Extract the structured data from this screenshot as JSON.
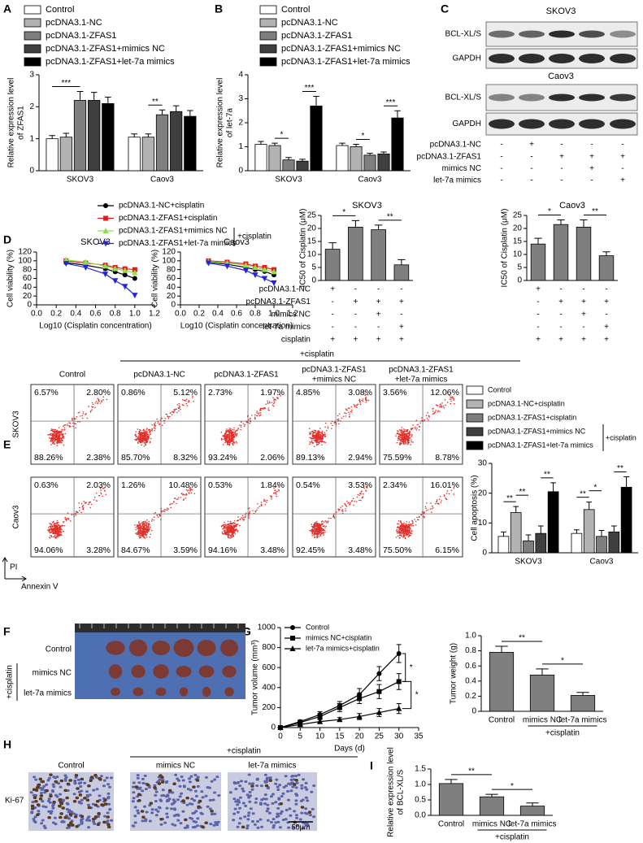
{
  "panel_labels": [
    "A",
    "B",
    "C",
    "D",
    "E",
    "F",
    "G",
    "H",
    "I"
  ],
  "blots": {
    "cell_lines": [
      {
        "name": "SKOV3",
        "bands": [
          "BCL-XL/S",
          "GAPDH"
        ]
      },
      {
        "name": "Caov3",
        "bands": [
          "BCL-XL/S",
          "GAPDH"
        ]
      }
    ],
    "treatments": [
      {
        "label": "pcDNA3.1-NC",
        "marks": [
          "-",
          "+",
          "-",
          "-",
          "-"
        ]
      },
      {
        "label": "pcDNA3.1-ZFAS1",
        "marks": [
          "-",
          "-",
          "+",
          "+",
          "+"
        ]
      },
      {
        "label": "mimics NC",
        "marks": [
          "-",
          "-",
          "-",
          "+",
          "-"
        ]
      },
      {
        "label": "let-7a mimics",
        "marks": [
          "-",
          "-",
          "-",
          "-",
          "+"
        ]
      }
    ]
  },
  "flow": {
    "group_label": "+cisplatin",
    "columns": [
      [
        "Control"
      ],
      [
        "pcDNA3.1-NC"
      ],
      [
        "pcDNA3.1-ZFAS1"
      ],
      [
        "pcDNA3.1-ZFAS1",
        "+mimics NC"
      ],
      [
        "pcDNA3.1-ZFAS1",
        "+let-7a mimics"
      ]
    ],
    "rows": [
      {
        "name": "SKOV3",
        "quadrants": [
          [
            "6.57%",
            "2.80%",
            "88.26%",
            "2.38%"
          ],
          [
            "0.86%",
            "5.12%",
            "85.70%",
            "8.32%"
          ],
          [
            "2.73%",
            "1.97%",
            "93.24%",
            "2.06%"
          ],
          [
            "4.85%",
            "3.08%",
            "89.13%",
            "2.94%"
          ],
          [
            "3.56%",
            "12.06%",
            "75.59%",
            "8.78%"
          ]
        ]
      },
      {
        "name": "Caov3",
        "quadrants": [
          [
            "0.63%",
            "2.03%",
            "94.06%",
            "3.28%"
          ],
          [
            "1.26%",
            "10.48%",
            "84.67%",
            "3.59%"
          ],
          [
            "0.53%",
            "1.84%",
            "94.16%",
            "3.48%"
          ],
          [
            "0.54%",
            "3.53%",
            "92.45%",
            "3.48%"
          ],
          [
            "2.34%",
            "16.01%",
            "75.50%",
            "6.15%"
          ]
        ]
      }
    ],
    "y_axis": "PI",
    "x_axis": "Annexin V"
  },
  "tumor_photo": {
    "rows": [
      "Control",
      "mimics NC",
      "let-7a mimics"
    ],
    "group_label": "+cisplatin"
  },
  "ihc": {
    "group_label": "+cisplatin",
    "columns": [
      "Control",
      "mimics NC",
      "let-7a mimics"
    ],
    "row_label": "Ki-67",
    "scale": "50μm"
  },
  "chart_data": [
    {
      "type": "bar",
      "ylabel": [
        "Relative expression level",
        "of ZFAS1"
      ],
      "categories": [
        "SKOV3",
        "Caov3"
      ],
      "series": [
        {
          "name": "Control",
          "color": "#ffffff",
          "values": [
            1.0,
            1.05
          ],
          "errors": [
            0.1,
            0.1
          ]
        },
        {
          "name": "pcDNA3.1-NC",
          "color": "#b3b3b3",
          "values": [
            1.05,
            1.05
          ],
          "errors": [
            0.12,
            0.1
          ]
        },
        {
          "name": "pcDNA3.1-ZFAS1",
          "color": "#7f7f7f",
          "values": [
            2.2,
            1.75
          ],
          "errors": [
            0.28,
            0.15
          ]
        },
        {
          "name": "pcDNA3.1-ZFAS1+mimics NC",
          "color": "#3f3f3f",
          "values": [
            2.2,
            1.85
          ],
          "errors": [
            0.25,
            0.18
          ]
        },
        {
          "name": "pcDNA3.1-ZFAS1+let-7a mimics",
          "color": "#000000",
          "values": [
            2.1,
            1.7
          ],
          "errors": [
            0.2,
            0.18
          ]
        }
      ],
      "ylim": [
        0,
        3
      ],
      "yticks": [
        0,
        1,
        2,
        3
      ],
      "annotations": [
        "***",
        "**"
      ]
    },
    {
      "type": "bar",
      "ylabel": [
        "Relative expression level",
        "of let-7a"
      ],
      "categories": [
        "SKOV3",
        "Caov3"
      ],
      "series": [
        {
          "name": "Control",
          "color": "#ffffff",
          "values": [
            1.1,
            1.05
          ],
          "errors": [
            0.12,
            0.1
          ]
        },
        {
          "name": "pcDNA3.1-NC",
          "color": "#b3b3b3",
          "values": [
            1.05,
            1.0
          ],
          "errors": [
            0.1,
            0.1
          ]
        },
        {
          "name": "pcDNA3.1-ZFAS1",
          "color": "#7f7f7f",
          "values": [
            0.45,
            0.65
          ],
          "errors": [
            0.1,
            0.08
          ]
        },
        {
          "name": "pcDNA3.1-ZFAS1+mimics NC",
          "color": "#3f3f3f",
          "values": [
            0.4,
            0.7
          ],
          "errors": [
            0.08,
            0.08
          ]
        },
        {
          "name": "pcDNA3.1-ZFAS1+let-7a mimics",
          "color": "#000000",
          "values": [
            2.7,
            2.2
          ],
          "errors": [
            0.4,
            0.3
          ]
        }
      ],
      "ylim": [
        0,
        4
      ],
      "yticks": [
        0,
        1,
        2,
        3,
        4
      ],
      "annotations": [
        "*",
        "***",
        "*",
        "***"
      ]
    },
    {
      "type": "line",
      "title": "SKOV3",
      "xlabel": "Log10 (Cisplatin concentration)",
      "ylabel": "Cell viability (%)",
      "x": [
        0.3,
        0.5,
        0.7,
        0.8,
        0.9,
        1.0
      ],
      "legend_group": "+cisplatin",
      "series": [
        {
          "name": "pcDNA3.1-NC+cisplatin",
          "color": "#000000",
          "marker": "circle",
          "values": [
            96,
            90,
            82,
            75,
            68,
            60
          ]
        },
        {
          "name": "pcDNA3.1-ZFAS1+cisplatin",
          "color": "#e41a1c",
          "marker": "square",
          "values": [
            100,
            95,
            90,
            85,
            82,
            80
          ]
        },
        {
          "name": "pcDNA3.1-ZFAS1+mimics NC",
          "color": "#8ee04a",
          "marker": "triangle",
          "values": [
            102,
            97,
            88,
            82,
            78,
            73
          ]
        },
        {
          "name": "pcDNA3.1-ZFAS1+let-7a mimics",
          "color": "#2323e0",
          "marker": "triangle-down",
          "values": [
            94,
            85,
            70,
            55,
            42,
            22
          ]
        }
      ],
      "xlim": [
        0,
        1.2
      ],
      "xticks": [
        {
          "value": 0,
          "label": "0.0"
        },
        0.2,
        0.4,
        0.6,
        0.8,
        {
          "value": 1,
          "label": "1.0"
        },
        1.2
      ],
      "ylim": [
        0,
        120
      ],
      "yticks": [
        0,
        20,
        40,
        60,
        80,
        100,
        120
      ]
    },
    {
      "type": "line",
      "title": "Caov3",
      "xlabel": "Log10 (Cisplatin concentration)",
      "ylabel": "Cell viability (%)",
      "x": [
        0.3,
        0.5,
        0.7,
        0.8,
        0.9,
        1.0
      ],
      "series": [
        {
          "color": "#000000",
          "marker": "circle",
          "values": [
            97,
            92,
            85,
            80,
            76,
            68
          ]
        },
        {
          "color": "#e41a1c",
          "marker": "square",
          "values": [
            100,
            97,
            93,
            88,
            85,
            80
          ]
        },
        {
          "color": "#8ee04a",
          "marker": "triangle",
          "values": [
            98,
            95,
            90,
            85,
            80,
            75
          ]
        },
        {
          "color": "#2323e0",
          "marker": "triangle-down",
          "values": [
            95,
            88,
            78,
            68,
            60,
            50
          ]
        }
      ],
      "xlim": [
        0,
        1.2
      ],
      "xticks": [
        {
          "value": 0,
          "label": "0.0"
        },
        0.2,
        0.4,
        0.6,
        0.8,
        {
          "value": 1,
          "label": "1.0"
        },
        1.2
      ],
      "ylim": [
        0,
        120
      ],
      "yticks": [
        0,
        20,
        40,
        60,
        80,
        100,
        120
      ]
    },
    {
      "type": "bar",
      "title": "SKOV3",
      "ylabel": "IC50 of Cisplatin (μM)",
      "color": "#7f7f7f",
      "values": [
        12,
        20.5,
        19.5,
        6
      ],
      "errors": [
        2.5,
        2.5,
        1.8,
        2
      ],
      "treatments": [
        {
          "label": "pcDNA3.1-NC",
          "marks": [
            "+",
            "-",
            "-",
            "-"
          ]
        },
        {
          "label": "pcDNA3.1-ZFAS1",
          "marks": [
            "-",
            "+",
            "+",
            "+"
          ]
        },
        {
          "label": "mimics NC",
          "marks": [
            "-",
            "-",
            "+",
            "-"
          ]
        },
        {
          "label": "let-7a mimics",
          "marks": [
            "-",
            "-",
            "-",
            "+"
          ]
        },
        {
          "label": "cisplatin",
          "marks": [
            "+",
            "+",
            "+",
            "+"
          ]
        }
      ],
      "ylim": [
        0,
        25
      ],
      "yticks": [
        0,
        5,
        10,
        15,
        20,
        25
      ],
      "annotations": [
        "*",
        "**"
      ]
    },
    {
      "type": "bar",
      "title": "Caov3",
      "ylabel": "IC50 of Cisplatin (μM)",
      "color": "#7f7f7f",
      "values": [
        14,
        21.5,
        20.5,
        9.5
      ],
      "errors": [
        2.2,
        1.8,
        2.8,
        1.5
      ],
      "treatments": [
        {
          "marks": [
            "+",
            "-",
            "-",
            "-"
          ]
        },
        {
          "marks": [
            "-",
            "+",
            "+",
            "+"
          ]
        },
        {
          "marks": [
            "-",
            "-",
            "+",
            "-"
          ]
        },
        {
          "marks": [
            "-",
            "-",
            "-",
            "+"
          ]
        },
        {
          "marks": [
            "+",
            "+",
            "+",
            "+"
          ]
        }
      ],
      "ylim": [
        0,
        25
      ],
      "yticks": [
        0,
        5,
        10,
        15,
        20,
        25
      ],
      "annotations": [
        "*",
        "**"
      ]
    },
    {
      "type": "bar",
      "ylabel": "Cell apoptosis (%)",
      "categories": [
        "SKOV3",
        "Caov3"
      ],
      "legend_group": "+cisplatin",
      "series": [
        {
          "name": "Control",
          "color": "#ffffff",
          "values": [
            5.5,
            6.5
          ],
          "errors": [
            1.5,
            1.2
          ]
        },
        {
          "name": "pcDNA3.1-NC+cisplatin",
          "color": "#b3b3b3",
          "values": [
            13.5,
            14.5
          ],
          "errors": [
            2,
            2.5
          ]
        },
        {
          "name": "pcDNA3.1-ZFAS1+cisplatin",
          "color": "#7f7f7f",
          "values": [
            4,
            5.5
          ],
          "errors": [
            2,
            2
          ]
        },
        {
          "name": "pcDNA3.1-ZFAS1+mimics NC",
          "color": "#3f3f3f",
          "values": [
            6.5,
            7
          ],
          "errors": [
            2.5,
            2
          ]
        },
        {
          "name": "pcDNA3.1-ZFAS1+let-7a mimics",
          "color": "#000000",
          "values": [
            20.5,
            22
          ],
          "errors": [
            3,
            3.5
          ]
        }
      ],
      "ylim": [
        0,
        30
      ],
      "yticks": [
        0,
        10,
        20,
        30
      ],
      "annotations": [
        "**",
        "**",
        "**",
        "**",
        "*",
        "**"
      ]
    },
    {
      "type": "line",
      "xlabel": "Days (d)",
      "ylabel": "Tumor volume (mm³)",
      "x": [
        0,
        5,
        10,
        15,
        20,
        25,
        30
      ],
      "series": [
        {
          "name": "Control",
          "color": "#000000",
          "marker": "circle",
          "values": [
            0,
            60,
            130,
            220,
            330,
            540,
            740
          ],
          "errors": [
            0,
            15,
            30,
            40,
            60,
            70,
            90
          ]
        },
        {
          "name": "mimics NC+cisplatin",
          "color": "#000000",
          "marker": "square",
          "values": [
            0,
            50,
            110,
            200,
            290,
            360,
            460
          ],
          "errors": [
            0,
            15,
            25,
            40,
            50,
            70,
            80
          ]
        },
        {
          "name": "let-7a mimics+cisplatin",
          "color": "#000000",
          "marker": "triangle",
          "values": [
            0,
            30,
            60,
            80,
            110,
            150,
            190
          ],
          "errors": [
            0,
            10,
            20,
            20,
            30,
            40,
            50
          ]
        }
      ],
      "xlim": [
        0,
        35
      ],
      "xticks": [
        0,
        5,
        10,
        15,
        20,
        25,
        30,
        35
      ],
      "ylim": [
        0,
        1000
      ],
      "yticks": [
        0,
        200,
        400,
        600,
        800,
        1000
      ],
      "annotations": [
        "*",
        "*"
      ]
    },
    {
      "type": "bar",
      "ylabel": "Tumor weight (g)",
      "categories": [
        "Control",
        "mimics NC",
        "let-7a mimics"
      ],
      "group_label": "+cisplatin",
      "color": "#7f7f7f",
      "values": [
        0.78,
        0.48,
        0.21
      ],
      "errors": [
        0.08,
        0.08,
        0.04
      ],
      "ylim": [
        0,
        1
      ],
      "yticks": [
        0,
        0.2,
        0.4,
        0.6,
        0.8,
        {
          "value": 1,
          "label": "1.0"
        }
      ],
      "annotations": [
        "**",
        "*"
      ]
    },
    {
      "type": "bar",
      "ylabel": [
        "Relative expression level",
        "of BCL-XL/S"
      ],
      "categories": [
        "Control",
        "mimics NC",
        "let-7a mimics"
      ],
      "group_label": "+cisplatin",
      "color": "#7f7f7f",
      "values": [
        1.03,
        0.6,
        0.3
      ],
      "errors": [
        0.13,
        0.08,
        0.1
      ],
      "ylim": [
        0,
        1.5
      ],
      "yticks": [
        {
          "value": 0,
          "label": "0.0"
        },
        0.5,
        {
          "value": 1,
          "label": "1.0"
        },
        1.5
      ],
      "annotations": [
        "**",
        "*"
      ]
    }
  ]
}
